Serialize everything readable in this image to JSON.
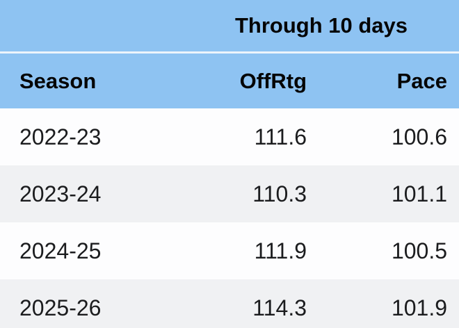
{
  "table": {
    "group_header": "Through 10 days",
    "columns": [
      {
        "label": "Season",
        "align": "left"
      },
      {
        "label": "OffRtg",
        "align": "right"
      },
      {
        "label": "Pace",
        "align": "right"
      }
    ],
    "rows": [
      {
        "season": "2022-23",
        "offrtg": "111.6",
        "pace": "100.6"
      },
      {
        "season": "2023-24",
        "offrtg": "110.3",
        "pace": "101.1"
      },
      {
        "season": "2024-25",
        "offrtg": "111.9",
        "pace": "100.5"
      },
      {
        "season": "2025-26",
        "offrtg": "114.3",
        "pace": "101.9"
      }
    ],
    "colors": {
      "header_bg": "#8ec3f2",
      "header_divider": "#edf4fb",
      "row_bg": "#fdfdfe",
      "row_alt_bg": "#f0f1f3",
      "header_text": "#050505",
      "body_text": "#1b1c1e"
    }
  },
  "chart_data": {
    "type": "table",
    "title": "Through 10 days",
    "columns": [
      "Season",
      "OffRtg",
      "Pace"
    ],
    "rows": [
      [
        "2022-23",
        111.6,
        100.6
      ],
      [
        "2023-24",
        110.3,
        101.1
      ],
      [
        "2024-25",
        111.9,
        100.5
      ],
      [
        "2025-26",
        114.3,
        101.9
      ]
    ],
    "layout": {
      "group_header_spans": [
        "OffRtg",
        "Pace"
      ],
      "season_column_align": "left",
      "numeric_columns_align": "right",
      "alternating_row_shading": true
    }
  }
}
